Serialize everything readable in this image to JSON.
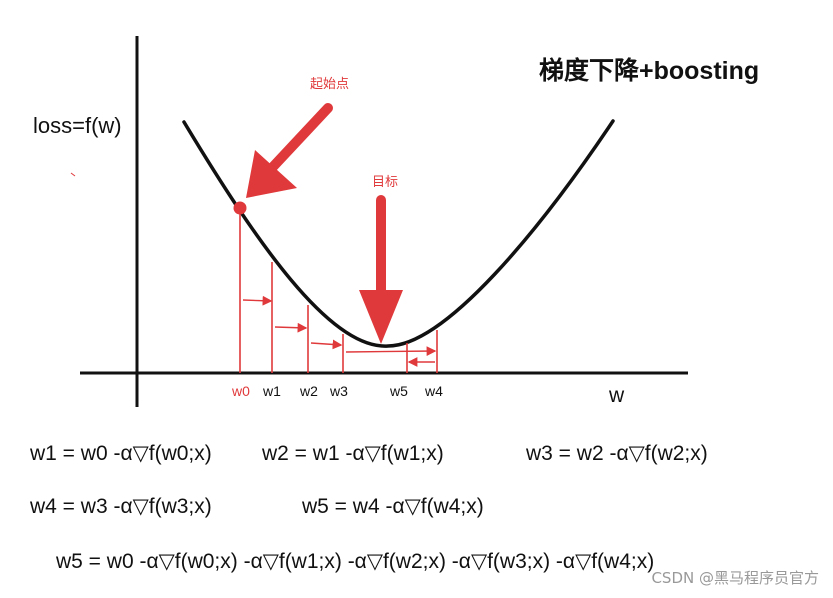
{
  "title": "梯度下降+boosting",
  "y_axis_label": "loss=f(w)",
  "x_axis_label": "w",
  "start_label": "起始点",
  "target_label": "目标",
  "ticks": [
    "w0",
    "w1",
    "w2",
    "w3",
    "w5",
    "w4"
  ],
  "formulas": [
    "w1 = w0 -α▽f(w0;x)",
    "w2 = w1 -α▽f(w1;x)",
    "w3 = w2 -α▽f(w2;x)",
    "w4 = w3 -α▽f(w3;x)",
    "w5 = w4 -α▽f(w4;x)",
    "w5 = w0 -α▽f(w0;x) -α▽f(w1;x) -α▽f(w2;x) -α▽f(w3;x) -α▽f(w4;x)"
  ],
  "watermark": "CSDN @黑马程序员官方",
  "colors": {
    "curve": "#111111",
    "accent": "#e0393b"
  }
}
